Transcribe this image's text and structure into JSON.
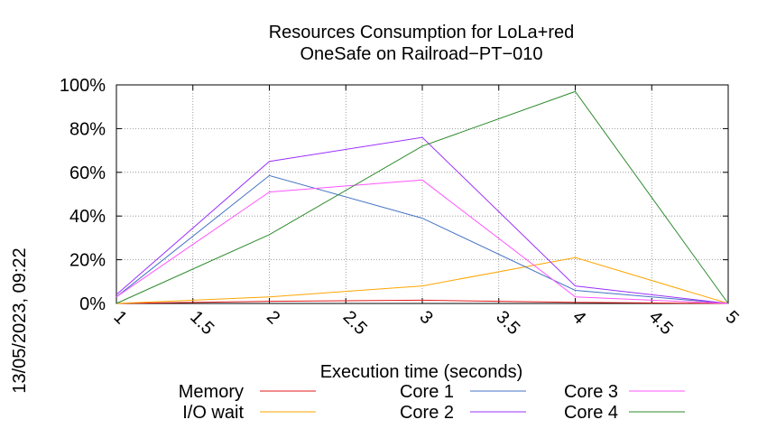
{
  "chart_data": {
    "type": "line",
    "title": [
      "Resources Consumption for LoLa+red",
      "OneSafe on Railroad−PT−010"
    ],
    "side_label": "13/05/2023, 09:22",
    "xlabel": "Execution time (seconds)",
    "ylabel": "",
    "xlim": [
      1,
      5
    ],
    "ylim": [
      0,
      100
    ],
    "x_ticks": [
      "1",
      "1.5",
      "2",
      "2.5",
      "3",
      "3.5",
      "4",
      "4.5",
      "5"
    ],
    "y_ticks": [
      "0%",
      "20%",
      "40%",
      "60%",
      "80%",
      "100%"
    ],
    "grid": true,
    "legend_position": "bottom",
    "x": [
      1,
      2,
      3,
      4,
      5
    ],
    "series": [
      {
        "name": "Memory",
        "color": "#e31a1c",
        "values": [
          0,
          1,
          1.5,
          0.5,
          0
        ]
      },
      {
        "name": "I/O wait",
        "color": "#ffa500",
        "values": [
          0,
          3,
          8,
          21,
          0
        ]
      },
      {
        "name": "Core 1",
        "color": "#4472c4",
        "values": [
          3,
          58.5,
          39,
          6,
          0
        ]
      },
      {
        "name": "Core 2",
        "color": "#9b30ff",
        "values": [
          4,
          65,
          76,
          8,
          0
        ]
      },
      {
        "name": "Core 3",
        "color": "#ff55ff",
        "values": [
          3,
          51,
          56.5,
          3,
          0
        ]
      },
      {
        "name": "Core 4",
        "color": "#2e8b2e",
        "values": [
          0,
          31.5,
          72,
          97,
          0
        ]
      }
    ]
  }
}
